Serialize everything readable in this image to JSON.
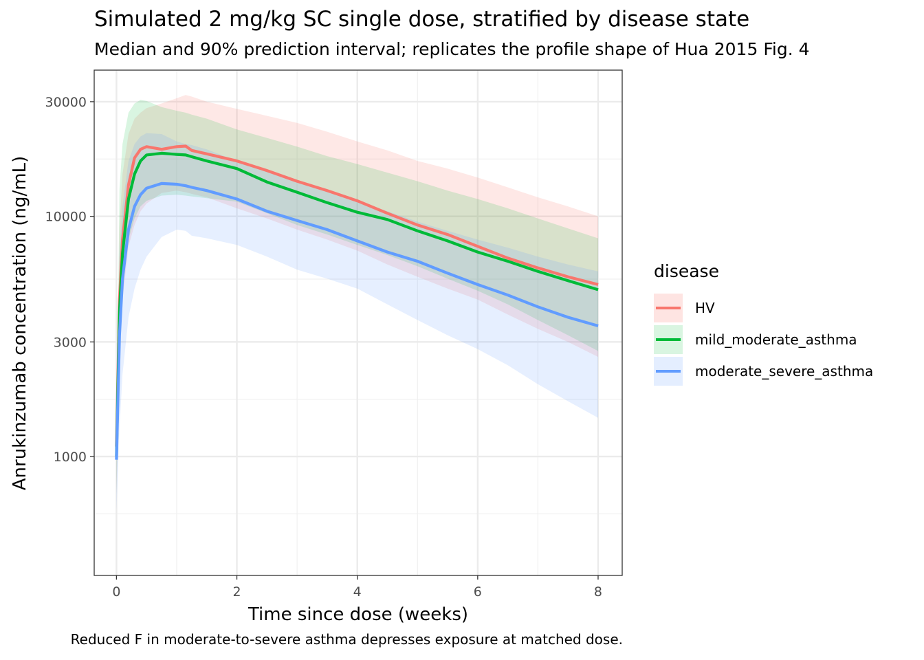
{
  "chart_data": {
    "type": "line",
    "title": "Simulated 2 mg/kg SC single dose, stratified by disease state",
    "subtitle": "Median and 90% prediction interval; replicates the profile shape of Hua 2015 Fig. 4",
    "caption": "Reduced F in moderate-to-severe asthma depresses exposure at matched dose.",
    "xlabel": "Time since dose (weeks)",
    "ylabel": "Anrukinzumab concentration (ng/mL)",
    "xlim": [
      -0.37,
      8.4
    ],
    "ylim": [
      320,
      40600
    ],
    "yscale": "log10",
    "xticks": [
      0,
      2,
      4,
      6,
      8
    ],
    "yticks": [
      1000,
      3000,
      10000,
      30000
    ],
    "ytick_labels": [
      "1000",
      "3000",
      "10000",
      "30000"
    ],
    "xtick_labels": [
      "0",
      "2",
      "4",
      "6",
      "8"
    ],
    "grid": true,
    "legend": {
      "title": "disease",
      "position": "right"
    },
    "series": [
      {
        "name": "HV",
        "color": "#F8766D",
        "x": [
          0,
          0.05,
          0.1,
          0.2,
          0.3,
          0.4,
          0.5,
          0.75,
          1,
          1.15,
          1.25,
          1.5,
          2,
          2.5,
          3,
          3.5,
          4,
          4.5,
          5,
          5.5,
          6,
          6.5,
          7,
          7.5,
          8
        ],
        "median": [
          1100,
          4500,
          8000,
          13500,
          17500,
          19000,
          19500,
          19000,
          19500,
          19600,
          18800,
          18200,
          17000,
          15500,
          14000,
          12800,
          11600,
          10300,
          9200,
          8400,
          7500,
          6700,
          6100,
          5600,
          5200
        ],
        "lower": [
          700,
          2600,
          4500,
          7500,
          9200,
          10500,
          11300,
          12500,
          12800,
          12600,
          12400,
          12000,
          10800,
          9800,
          8800,
          8000,
          7200,
          6300,
          5600,
          5000,
          4500,
          3900,
          3400,
          3000,
          2600
        ],
        "upper": [
          1200,
          9000,
          15000,
          22000,
          25500,
          27000,
          28200,
          29500,
          31000,
          32000,
          31500,
          30000,
          28000,
          26200,
          24500,
          22500,
          20500,
          18800,
          17000,
          15800,
          14500,
          13200,
          12000,
          11000,
          10000
        ]
      },
      {
        "name": "mild_moderate_asthma",
        "color": "#00BA38",
        "x": [
          0,
          0.05,
          0.1,
          0.2,
          0.3,
          0.4,
          0.5,
          0.75,
          1,
          1.15,
          1.25,
          1.5,
          2,
          2.5,
          3,
          3.5,
          4,
          4.5,
          5,
          5.5,
          6,
          6.5,
          7,
          7.5,
          8
        ],
        "median": [
          1000,
          4000,
          7000,
          11800,
          15000,
          17000,
          18000,
          18300,
          18100,
          18000,
          17700,
          17000,
          15800,
          13900,
          12600,
          11400,
          10400,
          9700,
          8700,
          7900,
          7100,
          6500,
          5900,
          5400,
          4950
        ],
        "lower": [
          700,
          2800,
          5000,
          8000,
          9800,
          11000,
          11600,
          12200,
          12300,
          12200,
          12100,
          11900,
          11500,
          10300,
          9200,
          8400,
          7600,
          6900,
          6200,
          5500,
          4900,
          4300,
          3700,
          3200,
          2750
        ],
        "upper": [
          1200,
          13000,
          20000,
          27000,
          29500,
          30500,
          30200,
          28500,
          27500,
          27000,
          26500,
          25500,
          23000,
          21200,
          19500,
          17800,
          16500,
          15200,
          14000,
          12800,
          11800,
          10800,
          9800,
          8900,
          8100
        ]
      },
      {
        "name": "moderate_severe_asthma",
        "color": "#619CFF",
        "x": [
          0,
          0.05,
          0.1,
          0.2,
          0.3,
          0.4,
          0.5,
          0.75,
          1,
          1.15,
          1.25,
          1.5,
          2,
          2.5,
          3,
          3.5,
          4,
          4.5,
          5,
          5.5,
          6,
          6.5,
          7,
          7.5,
          8
        ],
        "median": [
          970,
          3200,
          5500,
          8800,
          11000,
          12300,
          13100,
          13700,
          13600,
          13400,
          13200,
          12800,
          11800,
          10500,
          9600,
          8800,
          7900,
          7100,
          6500,
          5800,
          5200,
          4700,
          4200,
          3800,
          3500
        ],
        "lower": [
          600,
          1300,
          2200,
          3800,
          5000,
          6000,
          6800,
          8200,
          8800,
          8700,
          8300,
          8100,
          7600,
          6800,
          6000,
          5500,
          5000,
          4300,
          3700,
          3200,
          2800,
          2400,
          2000,
          1700,
          1450
        ],
        "upper": [
          1100,
          7000,
          11000,
          17000,
          20000,
          21500,
          22200,
          22000,
          20500,
          20000,
          19800,
          19000,
          17000,
          15500,
          14000,
          12700,
          11500,
          10500,
          9500,
          8700,
          8000,
          7400,
          6800,
          6300,
          5900
        ]
      }
    ]
  }
}
